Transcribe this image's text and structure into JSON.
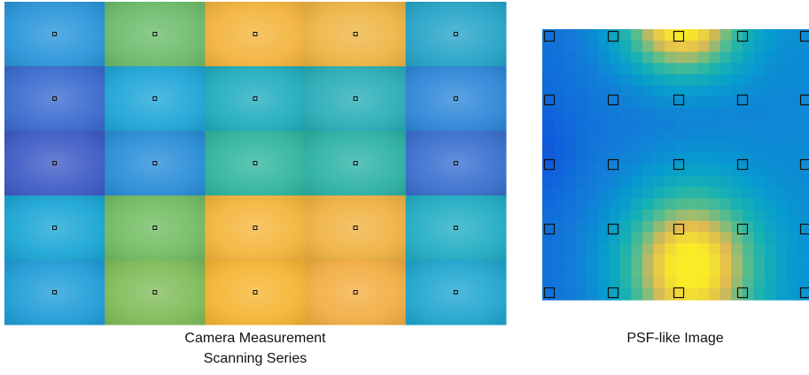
{
  "panels": [
    {
      "caption": [
        "Camera Measurement",
        "Scanning Series"
      ]
    },
    {
      "caption": [
        "PSF-like Image"
      ]
    }
  ]
}
